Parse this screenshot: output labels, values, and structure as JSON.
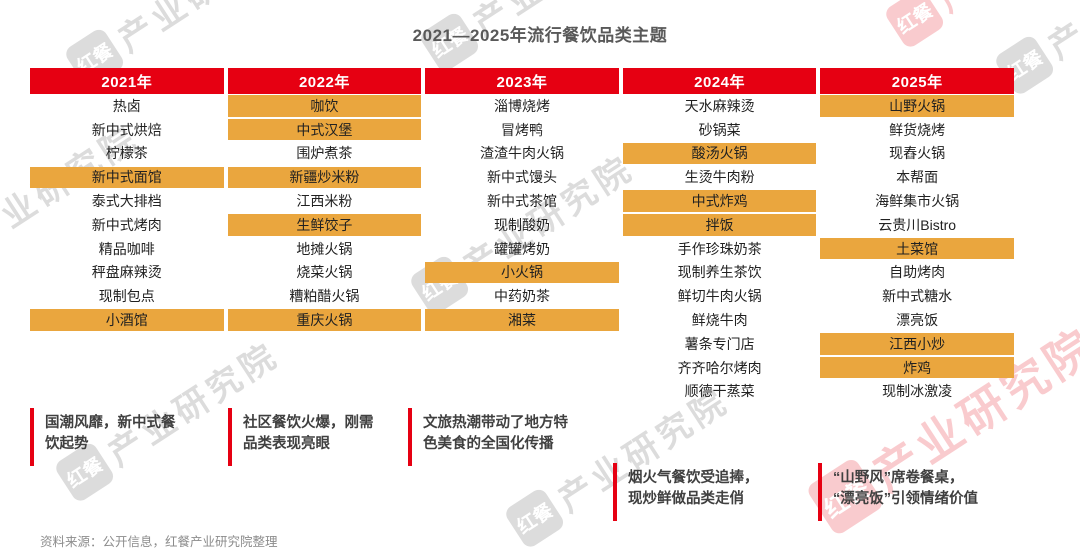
{
  "colors": {
    "header_red": "#E60012",
    "highlight_orange": "#EAA63E",
    "note_bar_red": "#E60012",
    "title_gray": "#595959"
  },
  "watermark": {
    "logo": "红餐",
    "label": "产业研究院"
  },
  "chart_data": {
    "type": "table",
    "title": "2021—2025年流行餐饮品类主题",
    "columns": [
      {
        "year": "2021年",
        "items": [
          {
            "label": "热卤",
            "highlight": false
          },
          {
            "label": "新中式烘焙",
            "highlight": false
          },
          {
            "label": "柠檬茶",
            "highlight": false
          },
          {
            "label": "新中式面馆",
            "highlight": true
          },
          {
            "label": "泰式大排档",
            "highlight": false
          },
          {
            "label": "新中式烤肉",
            "highlight": false
          },
          {
            "label": "精品咖啡",
            "highlight": false
          },
          {
            "label": "秤盘麻辣烫",
            "highlight": false
          },
          {
            "label": "现制包点",
            "highlight": false
          },
          {
            "label": "小酒馆",
            "highlight": true
          }
        ]
      },
      {
        "year": "2022年",
        "items": [
          {
            "label": "咖饮",
            "highlight": true
          },
          {
            "label": "中式汉堡",
            "highlight": true
          },
          {
            "label": "围炉煮茶",
            "highlight": false
          },
          {
            "label": "新疆炒米粉",
            "highlight": true
          },
          {
            "label": "江西米粉",
            "highlight": false
          },
          {
            "label": "生鲜饺子",
            "highlight": true
          },
          {
            "label": "地摊火锅",
            "highlight": false
          },
          {
            "label": "烧菜火锅",
            "highlight": false
          },
          {
            "label": "糟粕醋火锅",
            "highlight": false
          },
          {
            "label": "重庆火锅",
            "highlight": true
          }
        ]
      },
      {
        "year": "2023年",
        "items": [
          {
            "label": "淄博烧烤",
            "highlight": false
          },
          {
            "label": "冒烤鸭",
            "highlight": false
          },
          {
            "label": "渣渣牛肉火锅",
            "highlight": false
          },
          {
            "label": "新中式馒头",
            "highlight": false
          },
          {
            "label": "新中式茶馆",
            "highlight": false
          },
          {
            "label": "现制酸奶",
            "highlight": false
          },
          {
            "label": "罐罐烤奶",
            "highlight": false
          },
          {
            "label": "小火锅",
            "highlight": true
          },
          {
            "label": "中药奶茶",
            "highlight": false
          },
          {
            "label": "湘菜",
            "highlight": true
          }
        ]
      },
      {
        "year": "2024年",
        "items": [
          {
            "label": "天水麻辣烫",
            "highlight": false
          },
          {
            "label": "砂锅菜",
            "highlight": false
          },
          {
            "label": "酸汤火锅",
            "highlight": true
          },
          {
            "label": "生烫牛肉粉",
            "highlight": false
          },
          {
            "label": "中式炸鸡",
            "highlight": true
          },
          {
            "label": "拌饭",
            "highlight": true
          },
          {
            "label": "手作珍珠奶茶",
            "highlight": false
          },
          {
            "label": "现制养生茶饮",
            "highlight": false
          },
          {
            "label": "鲜切牛肉火锅",
            "highlight": false
          },
          {
            "label": "鲜烧牛肉",
            "highlight": false
          },
          {
            "label": "薯条专门店",
            "highlight": false
          },
          {
            "label": "齐齐哈尔烤肉",
            "highlight": false
          },
          {
            "label": "顺德干蒸菜",
            "highlight": false
          }
        ]
      },
      {
        "year": "2025年",
        "items": [
          {
            "label": "山野火锅",
            "highlight": true
          },
          {
            "label": "鲜货烧烤",
            "highlight": false
          },
          {
            "label": "现舂火锅",
            "highlight": false
          },
          {
            "label": "本帮面",
            "highlight": false
          },
          {
            "label": "海鲜集市火锅",
            "highlight": false
          },
          {
            "label": "云贵川Bistro",
            "highlight": false
          },
          {
            "label": "土菜馆",
            "highlight": true
          },
          {
            "label": "自助烤肉",
            "highlight": false
          },
          {
            "label": "新中式糖水",
            "highlight": false
          },
          {
            "label": "漂亮饭",
            "highlight": false
          },
          {
            "label": "江西小炒",
            "highlight": true
          },
          {
            "label": "炸鸡",
            "highlight": true
          },
          {
            "label": "现制冰激凌",
            "highlight": false
          }
        ]
      }
    ],
    "annotations": [
      "国潮风靡，新中式餐\n饮起势",
      "社区餐饮火爆，刚需\n品类表现亮眼",
      "文旅热潮带动了地方特\n色美食的全国化传播",
      "烟火气餐饮受追捧，\n现炒鲜做品类走俏",
      "“山野风”席卷餐桌，\n“漂亮饭”引领情绪价值"
    ],
    "source": "资料来源：公开信息，红餐产业研究院整理"
  }
}
